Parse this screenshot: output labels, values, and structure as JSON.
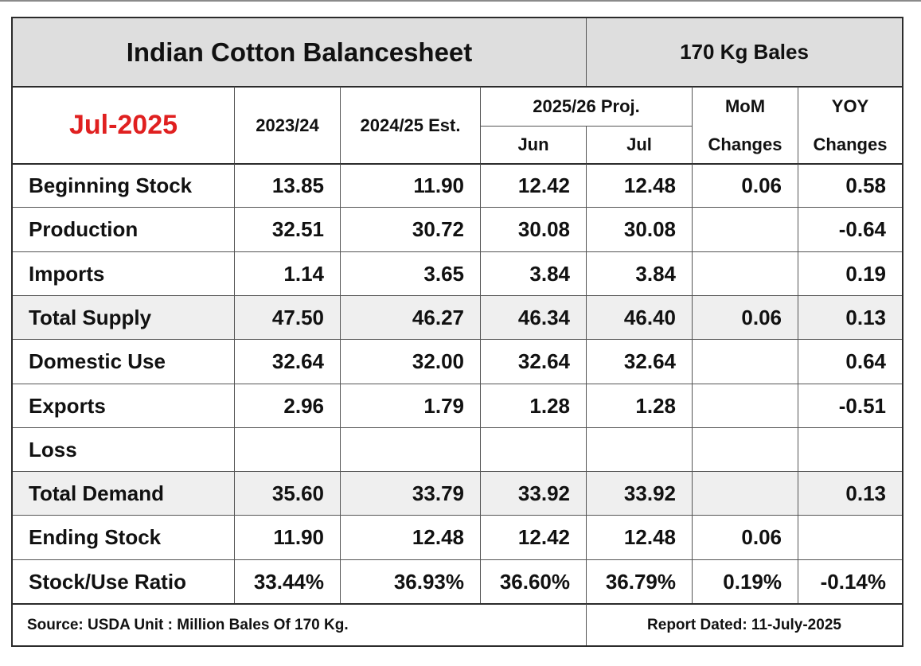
{
  "title": "Indian Cotton Balancesheet",
  "unit_label": "170 Kg Bales",
  "report_month": "Jul-2025",
  "headers": {
    "y2023": "2023/24",
    "y2024": "2024/25 Est.",
    "proj": "2025/26 Proj.",
    "jun": "Jun",
    "jul": "Jul",
    "mom_top": "MoM",
    "mom_bottom": "Changes",
    "yoy_top": "YOY",
    "yoy_bottom": "Changes"
  },
  "rows": [
    {
      "label": "Beginning Stock",
      "y2023": "13.85",
      "y2024": "11.90",
      "jun": "12.42",
      "jul": "12.48",
      "mom": "0.06",
      "yoy": "0.58"
    },
    {
      "label": "Production",
      "y2023": "32.51",
      "y2024": "30.72",
      "jun": "30.08",
      "jul": "30.08",
      "mom": "",
      "yoy": "-0.64"
    },
    {
      "label": "Imports",
      "y2023": "1.14",
      "y2024": "3.65",
      "jun": "3.84",
      "jul": "3.84",
      "mom": "",
      "yoy": "0.19"
    },
    {
      "label": "Total Supply",
      "y2023": "47.50",
      "y2024": "46.27",
      "jun": "46.34",
      "jul": "46.40",
      "mom": "0.06",
      "yoy": "0.13"
    },
    {
      "label": "Domestic Use",
      "y2023": "32.64",
      "y2024": "32.00",
      "jun": "32.64",
      "jul": "32.64",
      "mom": "",
      "yoy": "0.64"
    },
    {
      "label": "Exports",
      "y2023": "2.96",
      "y2024": "1.79",
      "jun": "1.28",
      "jul": "1.28",
      "mom": "",
      "yoy": "-0.51"
    },
    {
      "label": "Loss",
      "y2023": "",
      "y2024": "",
      "jun": "",
      "jul": "",
      "mom": "",
      "yoy": ""
    },
    {
      "label": "Total Demand",
      "y2023": "35.60",
      "y2024": "33.79",
      "jun": "33.92",
      "jul": "33.92",
      "mom": "",
      "yoy": "0.13"
    },
    {
      "label": "Ending Stock",
      "y2023": "11.90",
      "y2024": "12.48",
      "jun": "12.42",
      "jul": "12.48",
      "mom": "0.06",
      "yoy": ""
    },
    {
      "label": "Stock/Use Ratio",
      "y2023": "33.44%",
      "y2024": "36.93%",
      "jun": "36.60%",
      "jul": "36.79%",
      "mom": "0.19%",
      "yoy": "-0.14%"
    }
  ],
  "footer": {
    "source": "Source: USDA  Unit : Million Bales Of 170 Kg.",
    "dated": "Report Dated: 11-July-2025"
  }
}
